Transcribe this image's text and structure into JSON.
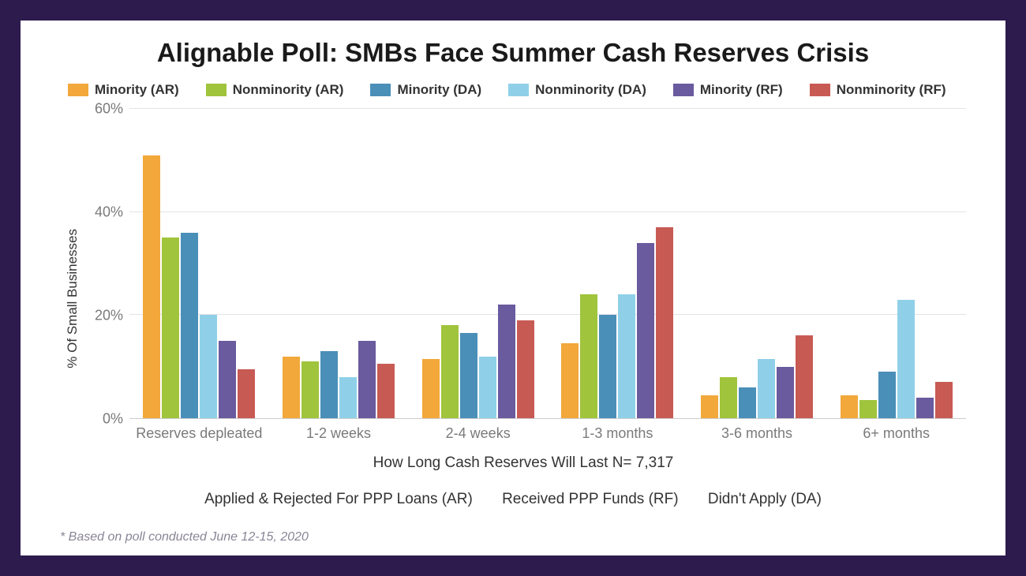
{
  "frame": {
    "border_color": "#2d1b4e",
    "background": "#ffffff"
  },
  "title": "Alignable Poll: SMBs Face Summer Cash Reserves Crisis",
  "title_fontsize": 33,
  "chart": {
    "type": "bar",
    "ylabel": "% Of Small Businesses",
    "xlabel": "How Long Cash Reserves Will Last   N= 7,317",
    "ylim": [
      0,
      60
    ],
    "ytick_step": 20,
    "yticks": [
      "0%",
      "20%",
      "40%",
      "60%"
    ],
    "grid_color": "#e3e3e3",
    "xtick_color": "#7a7a7a",
    "series": [
      {
        "name": "Minority (AR)",
        "color": "#f2a83b"
      },
      {
        "name": "Nonminority (AR)",
        "color": "#a0c43c"
      },
      {
        "name": "Minority (DA)",
        "color": "#4a8fb8"
      },
      {
        "name": "Nonminority (DA)",
        "color": "#8fd0e8"
      },
      {
        "name": "Minority (RF)",
        "color": "#6a5a9e"
      },
      {
        "name": "Nonminority (RF)",
        "color": "#c85a54"
      }
    ],
    "categories": [
      "Reserves depleated",
      "1-2 weeks",
      "2-4 weeks",
      "1-3 months",
      "3-6 months",
      "6+ months"
    ],
    "values": [
      [
        51,
        35,
        36,
        20,
        15,
        9.5
      ],
      [
        12,
        11,
        13,
        8,
        15,
        10.5
      ],
      [
        11.5,
        18,
        16.5,
        12,
        22,
        19
      ],
      [
        14.5,
        24,
        20,
        24,
        34,
        37
      ],
      [
        4.5,
        8,
        6,
        11.5,
        10,
        16
      ],
      [
        4.5,
        3.5,
        9,
        23,
        4,
        7
      ]
    ]
  },
  "key_defs": {
    "ar": "Applied & Rejected For PPP Loans (AR)",
    "rf": "Received PPP Funds (RF)",
    "da": "Didn't Apply (DA)"
  },
  "footnote": "* Based on poll conducted June 12-15, 2020"
}
